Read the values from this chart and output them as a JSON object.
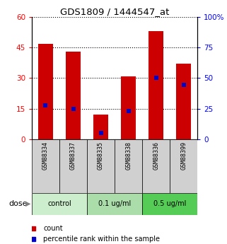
{
  "title": "GDS1809 / 1444547_at",
  "bar_labels": [
    "GSM88334",
    "GSM88337",
    "GSM88335",
    "GSM88338",
    "GSM88336",
    "GSM88399"
  ],
  "bar_heights": [
    47,
    43,
    12,
    31,
    53,
    37
  ],
  "blue_marker_left": [
    16.7,
    15.0,
    3.0,
    13.7,
    30.0,
    26.7
  ],
  "left_ylim": [
    0,
    60
  ],
  "right_ylim": [
    0,
    100
  ],
  "left_yticks": [
    0,
    15,
    30,
    45,
    60
  ],
  "right_yticks": [
    0,
    25,
    50,
    75,
    100
  ],
  "bar_color": "#cc0000",
  "blue_color": "#0000cc",
  "groups": [
    {
      "label": "control",
      "indices": [
        0,
        1
      ],
      "color": "#cceecc"
    },
    {
      "label": "0.1 ug/ml",
      "indices": [
        2,
        3
      ],
      "color": "#aaddaa"
    },
    {
      "label": "0.5 ug/ml",
      "indices": [
        4,
        5
      ],
      "color": "#55cc55"
    }
  ],
  "sample_box_color": "#d0d0d0",
  "dose_label": "dose",
  "legend_count_label": "count",
  "legend_percentile_label": "percentile rank within the sample",
  "figsize": [
    3.21,
    3.45
  ],
  "dpi": 100
}
